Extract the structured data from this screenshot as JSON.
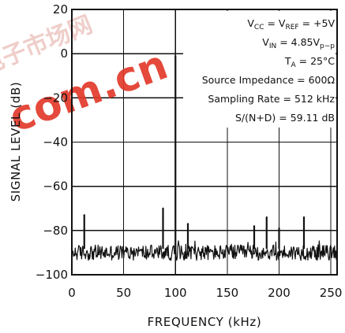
{
  "chart_data": {
    "type": "line",
    "xlabel": "FREQUENCY (kHz)",
    "ylabel": "SIGNAL LEVEL (dB)",
    "xlim": [
      0,
      256
    ],
    "ylim": [
      -100,
      20
    ],
    "x_ticks": [
      0,
      50,
      100,
      150,
      200,
      250
    ],
    "y_ticks": [
      20,
      0,
      -20,
      -40,
      -60,
      -80,
      -100
    ],
    "x_tick_labels": [
      "0",
      "50",
      "100",
      "150",
      "200",
      "250"
    ],
    "y_tick_labels": [
      "20",
      "0",
      "−20",
      "−40",
      "−60",
      "−80",
      "−100"
    ],
    "grid": true,
    "noise_floor_db": -90,
    "series": [
      {
        "color": "#111111",
        "spurs": [
          {
            "x": 100,
            "y": -1
          },
          {
            "x": 88,
            "y": -70
          },
          {
            "x": 12,
            "y": -73
          },
          {
            "x": 188,
            "y": -74
          },
          {
            "x": 224,
            "y": -74
          },
          {
            "x": 112,
            "y": -77
          },
          {
            "x": 176,
            "y": -78
          },
          {
            "x": 200,
            "y": -79
          }
        ]
      }
    ],
    "annotations": {
      "vcc_line": {
        "base": "V",
        "sub": "CC",
        "mid": " = V",
        "sub2": "REF",
        "tail": " = +5V"
      },
      "vin_line": {
        "base": "V",
        "sub": "IN",
        "mid": " = 4.85V",
        "sub2": "p−p",
        "tail": ""
      },
      "ta_line": {
        "base": "T",
        "sub": "A",
        "mid": " = 25°C",
        "sub2": "",
        "tail": ""
      },
      "source_impedance": "Source Impedance = 600Ω",
      "sampling_rate": "Sampling Rate = 512 kHz",
      "sinad": "S/(N+D) = 59.11 dB"
    }
  },
  "watermark": {
    "text": "com.cn",
    "cjk_text": "电子市场网",
    "color": "#e23a2b"
  }
}
